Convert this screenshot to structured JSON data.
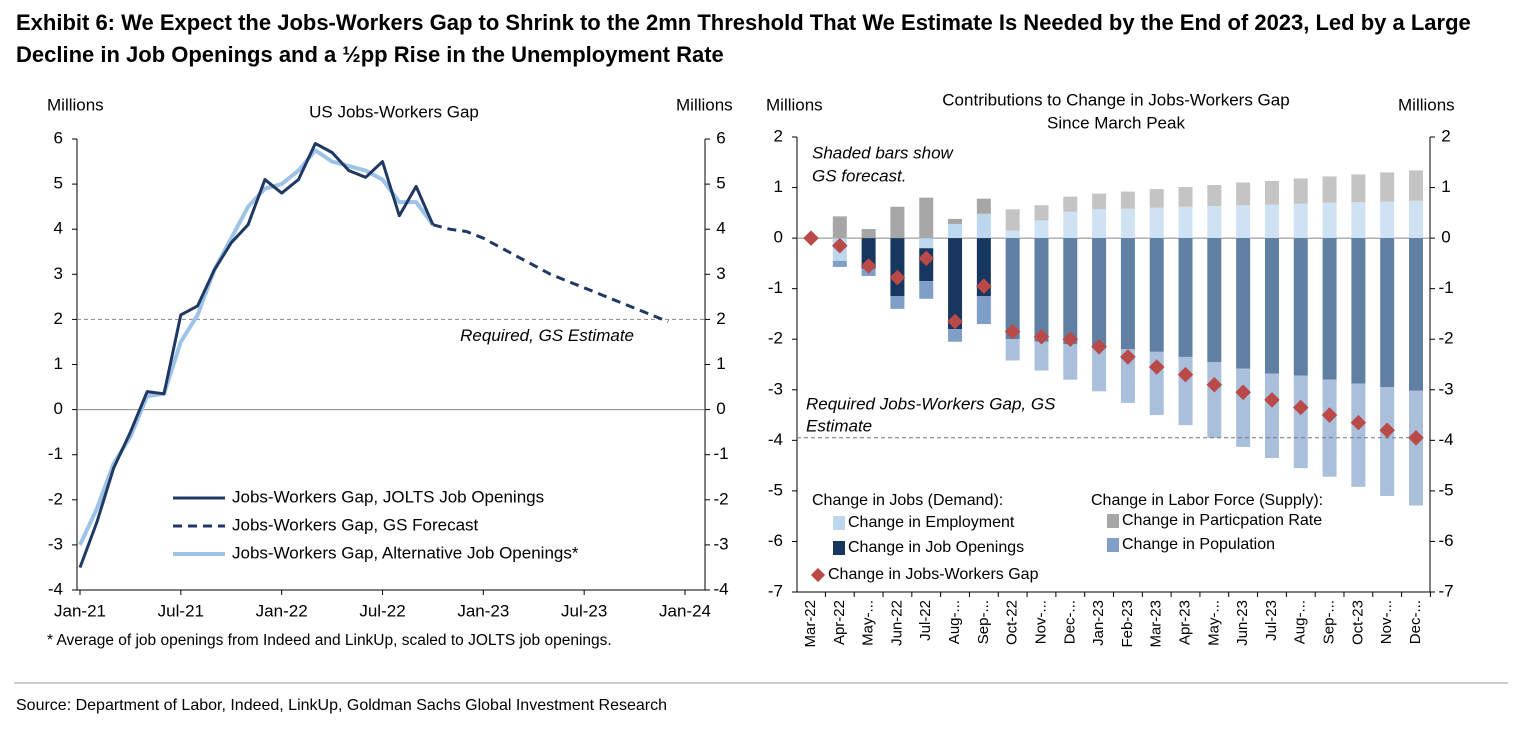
{
  "title": [
    "Exhibit 6: We Expect the Jobs-Workers Gap to Shrink to the 2mn Threshold That We Estimate Is Needed by the End of 2023, Led by a Large",
    "Decline in Job Openings and a ½pp Rise in the Unemployment Rate"
  ],
  "source": "Source: Department of Labor, Indeed, LinkUp, Goldman Sachs Global Investment Research",
  "chart_data": [
    {
      "type": "line",
      "title": "US Jobs-Workers Gap",
      "y_label": "Millions",
      "y2_label": "Millions",
      "x": [
        "Jan-21",
        "Feb-21",
        "Mar-21",
        "Apr-21",
        "May-21",
        "Jun-21",
        "Jul-21",
        "Aug-21",
        "Sep-21",
        "Oct-21",
        "Nov-21",
        "Dec-21",
        "Jan-22",
        "Feb-22",
        "Mar-22",
        "Apr-22",
        "May-22",
        "Jun-22",
        "Jul-22",
        "Aug-22",
        "Sep-22",
        "Oct-22",
        "Nov-22",
        "Dec-22",
        "Jan-23",
        "Feb-23",
        "Mar-23",
        "Apr-23",
        "May-23",
        "Jun-23",
        "Jul-23",
        "Aug-23",
        "Sep-23",
        "Oct-23",
        "Nov-23",
        "Dec-23",
        "Jan-24"
      ],
      "xticks": [
        "Jan-21",
        "Jul-21",
        "Jan-22",
        "Jul-22",
        "Jan-23",
        "Jul-23",
        "Jan-24"
      ],
      "ylim": [
        -4,
        6
      ],
      "yticks": [
        -4,
        -3,
        -2,
        -1,
        0,
        1,
        2,
        3,
        4,
        5,
        6
      ],
      "y2lim": [
        -4,
        6
      ],
      "y2ticks": [
        -4,
        -3,
        -2,
        -1,
        0,
        1,
        2,
        3,
        4,
        5,
        6
      ],
      "series": [
        {
          "name": "Jobs-Workers Gap, JOLTS Job Openings",
          "color": "#1f3864",
          "dash": false,
          "values": [
            -3.5,
            -2.5,
            -1.3,
            -0.5,
            0.4,
            0.35,
            2.1,
            2.3,
            3.1,
            3.7,
            4.1,
            5.1,
            4.8,
            5.1,
            5.9,
            5.7,
            5.3,
            5.15,
            5.5,
            4.3,
            4.95,
            4.1,
            null,
            null,
            null,
            null,
            null,
            null,
            null,
            null,
            null,
            null,
            null,
            null,
            null,
            null,
            null
          ]
        },
        {
          "name": "Jobs-Workers Gap, GS Forecast",
          "color": "#1f3864",
          "dash": true,
          "values": [
            null,
            null,
            null,
            null,
            null,
            null,
            null,
            null,
            null,
            null,
            null,
            null,
            null,
            null,
            null,
            null,
            null,
            null,
            null,
            null,
            null,
            4.1,
            4.0,
            3.95,
            3.8,
            3.6,
            3.4,
            3.2,
            3.0,
            2.85,
            2.7,
            2.55,
            2.4,
            2.25,
            2.1,
            1.95,
            null
          ]
        },
        {
          "name": "Jobs-Workers Gap, Alternative Job Openings*",
          "color": "#9dc3e6",
          "dash": false,
          "values": [
            -3.0,
            -2.2,
            -1.2,
            -0.6,
            0.3,
            0.35,
            1.5,
            2.1,
            3.1,
            3.8,
            4.5,
            4.9,
            5.0,
            5.3,
            5.75,
            5.5,
            5.4,
            5.3,
            5.1,
            4.6,
            4.6,
            4.1,
            null,
            null,
            null,
            null,
            null,
            null,
            null,
            null,
            null,
            null,
            null,
            null,
            null,
            null,
            null
          ]
        }
      ],
      "hline": {
        "value": 2,
        "label": "Required, GS Estimate"
      },
      "footnote": "* Average of job openings from Indeed and LinkUp, scaled to JOLTS job openings."
    },
    {
      "type": "bar",
      "stacked": true,
      "title": [
        "Contributions to Change in Jobs-Workers Gap",
        "Since March Peak"
      ],
      "y_label": "Millions",
      "y2_label": "Millions",
      "categories": [
        "Mar-22",
        "Apr-22",
        "May-...",
        "Jun-22",
        "Jul-22",
        "Aug-...",
        "Sep-...",
        "Oct-22",
        "Nov-...",
        "Dec-...",
        "Jan-23",
        "Feb-23",
        "Mar-23",
        "Apr-23",
        "May-...",
        "Jun-23",
        "Jul-23",
        "Aug-...",
        "Sep-...",
        "Oct-23",
        "Nov-...",
        "Dec-..."
      ],
      "ylim": [
        -7,
        2
      ],
      "yticks": [
        -7,
        -6,
        -5,
        -4,
        -3,
        -2,
        -1,
        0,
        1,
        2
      ],
      "y2lim": [
        -7,
        2
      ],
      "y2ticks": [
        -7,
        -6,
        -5,
        -4,
        -3,
        -2,
        -1,
        0,
        1,
        2
      ],
      "forecast_from": "Oct-22",
      "legend_groups": [
        {
          "title": "Change in Jobs (Demand):"
        },
        {
          "title": "Change in Labor Force (Supply):"
        }
      ],
      "series": [
        {
          "name": "Change in Employment",
          "type": "bar",
          "color": "#bdd7ee",
          "forecast_color": "#cfe2f3",
          "values": [
            0,
            -0.45,
            0,
            0,
            -0.2,
            0.28,
            0.48,
            0.15,
            0.35,
            0.52,
            0.57,
            0.58,
            0.6,
            0.62,
            0.63,
            0.65,
            0.66,
            0.68,
            0.7,
            0.71,
            0.72,
            0.74
          ]
        },
        {
          "name": "Change in Job Openings",
          "type": "bar",
          "color": "#17375e",
          "forecast_color": "#5f7fa3",
          "values": [
            0,
            0,
            -0.6,
            -1.15,
            -0.65,
            -1.8,
            -1.15,
            -2.0,
            -2.05,
            -2.1,
            -2.15,
            -2.2,
            -2.25,
            -2.35,
            -2.45,
            -2.58,
            -2.68,
            -2.72,
            -2.8,
            -2.88,
            -2.95,
            -3.02
          ]
        },
        {
          "name": "Change in Particpation Rate",
          "type": "bar",
          "color": "#a6a6a6",
          "forecast_color": "#c4c4c4",
          "values": [
            0,
            0.43,
            0.18,
            0.62,
            0.8,
            0.1,
            0.3,
            0.42,
            0.3,
            0.3,
            0.31,
            0.34,
            0.37,
            0.39,
            0.42,
            0.45,
            0.47,
            0.5,
            0.52,
            0.55,
            0.58,
            0.6
          ]
        },
        {
          "name": "Change in Population",
          "type": "bar",
          "color": "#7f9fc9",
          "forecast_color": "#a9bfdc",
          "values": [
            0,
            -0.12,
            -0.15,
            -0.25,
            -0.35,
            -0.25,
            -0.55,
            -0.42,
            -0.57,
            -0.7,
            -0.88,
            -1.06,
            -1.25,
            -1.35,
            -1.5,
            -1.55,
            -1.67,
            -1.83,
            -1.92,
            -2.04,
            -2.15,
            -2.27
          ]
        },
        {
          "name": "Change in Jobs-Workers Gap",
          "type": "scatter",
          "color": "#b94a48",
          "values": [
            0,
            -0.15,
            -0.55,
            -0.78,
            -0.4,
            -1.65,
            -0.95,
            -1.85,
            -1.95,
            -2.0,
            -2.15,
            -2.35,
            -2.55,
            -2.7,
            -2.9,
            -3.05,
            -3.2,
            -3.35,
            -3.5,
            -3.65,
            -3.8,
            -3.95
          ]
        }
      ],
      "hline": {
        "value": -3.95,
        "label": [
          "Required Jobs-Workers Gap, GS",
          "Estimate"
        ]
      },
      "annotation": [
        "Shaded bars show",
        "GS forecast."
      ]
    }
  ]
}
